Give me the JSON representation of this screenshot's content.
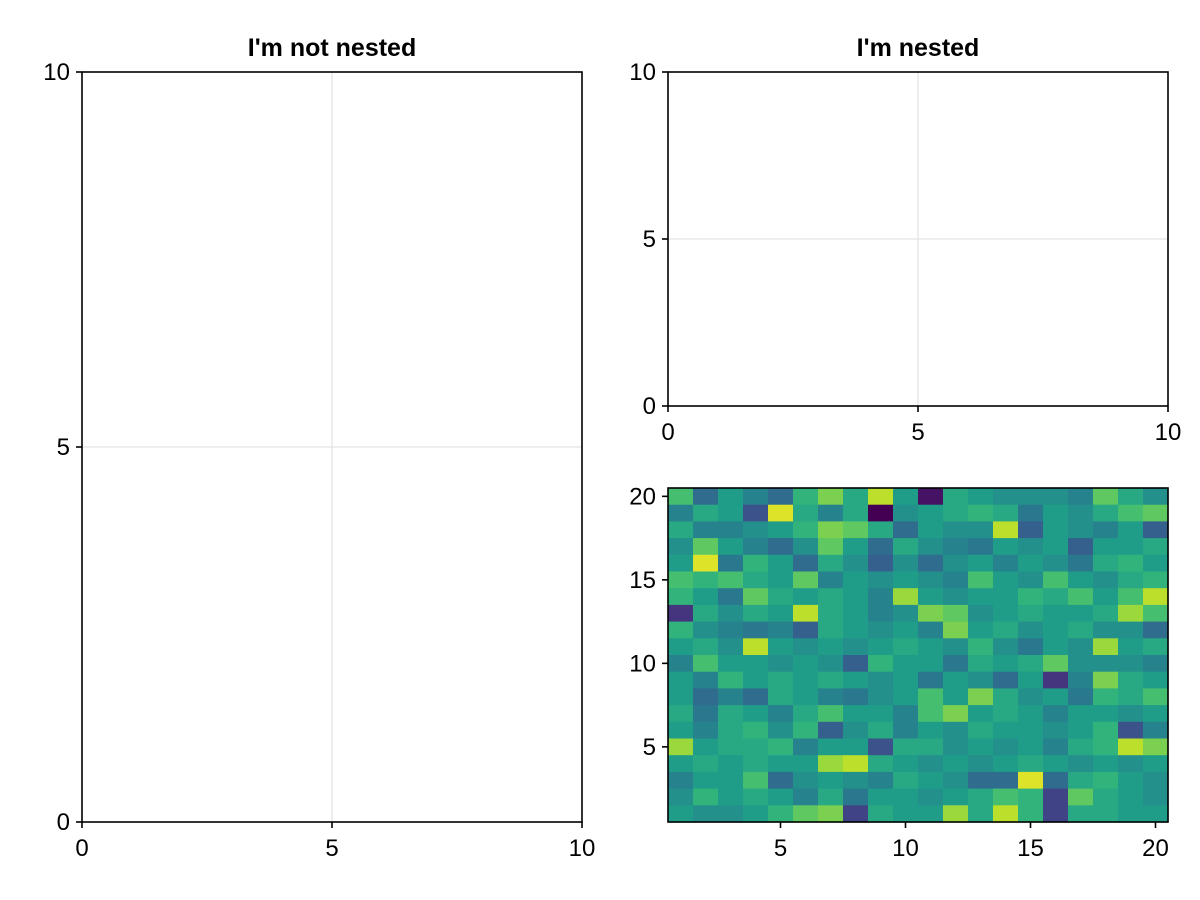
{
  "chart_data": [
    {
      "type": "line",
      "title": "I'm not nested",
      "xlim": [
        0,
        10
      ],
      "ylim": [
        0,
        10
      ],
      "xticks": [
        "0",
        "5",
        "10"
      ],
      "yticks": [
        "0",
        "5",
        "10"
      ],
      "grid": true,
      "series": []
    },
    {
      "type": "line",
      "title": "I'm nested",
      "xlim": [
        0,
        10
      ],
      "ylim": [
        0,
        10
      ],
      "xticks": [
        "0",
        "5",
        "10"
      ],
      "yticks": [
        "0",
        "5",
        "10"
      ],
      "grid": true,
      "series": []
    },
    {
      "type": "heatmap",
      "title": "",
      "colormap": "viridis",
      "xlim": [
        0.5,
        20.5
      ],
      "ylim": [
        0.5,
        20.5
      ],
      "xticks": [
        "5",
        "10",
        "15",
        "20"
      ],
      "yticks": [
        "5",
        "10",
        "15",
        "20"
      ],
      "grid": false,
      "rows_top_to_bottom": [
        [
          0.7,
          0.35,
          0.55,
          0.45,
          0.35,
          0.65,
          0.8,
          0.6,
          0.9,
          0.55,
          0.05,
          0.6,
          0.55,
          0.5,
          0.5,
          0.5,
          0.45,
          0.75,
          0.6,
          0.5
        ],
        [
          0.45,
          0.6,
          0.55,
          0.25,
          0.95,
          0.6,
          0.45,
          0.6,
          0.0,
          0.5,
          0.55,
          0.6,
          0.65,
          0.6,
          0.4,
          0.55,
          0.5,
          0.6,
          0.7,
          0.75
        ],
        [
          0.6,
          0.45,
          0.45,
          0.5,
          0.55,
          0.65,
          0.8,
          0.75,
          0.6,
          0.35,
          0.55,
          0.5,
          0.5,
          0.9,
          0.3,
          0.55,
          0.5,
          0.45,
          0.55,
          0.3
        ],
        [
          0.5,
          0.75,
          0.55,
          0.45,
          0.35,
          0.5,
          0.75,
          0.55,
          0.35,
          0.6,
          0.5,
          0.45,
          0.4,
          0.55,
          0.5,
          0.55,
          0.3,
          0.55,
          0.55,
          0.6
        ],
        [
          0.55,
          0.95,
          0.4,
          0.65,
          0.55,
          0.35,
          0.6,
          0.5,
          0.3,
          0.5,
          0.35,
          0.5,
          0.55,
          0.45,
          0.55,
          0.5,
          0.4,
          0.6,
          0.65,
          0.55
        ],
        [
          0.7,
          0.65,
          0.7,
          0.6,
          0.55,
          0.75,
          0.45,
          0.55,
          0.5,
          0.55,
          0.5,
          0.45,
          0.7,
          0.55,
          0.5,
          0.7,
          0.55,
          0.5,
          0.6,
          0.65
        ],
        [
          0.65,
          0.55,
          0.4,
          0.75,
          0.6,
          0.55,
          0.6,
          0.55,
          0.45,
          0.85,
          0.55,
          0.5,
          0.55,
          0.55,
          0.65,
          0.6,
          0.7,
          0.55,
          0.7,
          0.9
        ],
        [
          0.15,
          0.6,
          0.5,
          0.6,
          0.55,
          0.9,
          0.6,
          0.55,
          0.45,
          0.5,
          0.8,
          0.75,
          0.5,
          0.55,
          0.6,
          0.55,
          0.55,
          0.6,
          0.85,
          0.7
        ],
        [
          0.65,
          0.5,
          0.45,
          0.4,
          0.45,
          0.3,
          0.6,
          0.55,
          0.5,
          0.55,
          0.45,
          0.8,
          0.55,
          0.6,
          0.5,
          0.55,
          0.6,
          0.5,
          0.5,
          0.35
        ],
        [
          0.55,
          0.6,
          0.5,
          0.9,
          0.55,
          0.5,
          0.55,
          0.5,
          0.55,
          0.6,
          0.55,
          0.5,
          0.65,
          0.5,
          0.4,
          0.55,
          0.5,
          0.85,
          0.55,
          0.6
        ],
        [
          0.45,
          0.7,
          0.55,
          0.55,
          0.5,
          0.55,
          0.5,
          0.3,
          0.65,
          0.55,
          0.55,
          0.4,
          0.6,
          0.55,
          0.6,
          0.75,
          0.5,
          0.5,
          0.5,
          0.45
        ],
        [
          0.55,
          0.45,
          0.65,
          0.55,
          0.6,
          0.55,
          0.6,
          0.55,
          0.5,
          0.55,
          0.4,
          0.55,
          0.5,
          0.35,
          0.55,
          0.15,
          0.45,
          0.8,
          0.6,
          0.55
        ],
        [
          0.55,
          0.35,
          0.45,
          0.35,
          0.6,
          0.55,
          0.45,
          0.4,
          0.5,
          0.55,
          0.7,
          0.55,
          0.8,
          0.6,
          0.5,
          0.55,
          0.4,
          0.65,
          0.6,
          0.7
        ],
        [
          0.6,
          0.4,
          0.6,
          0.55,
          0.45,
          0.6,
          0.7,
          0.55,
          0.55,
          0.45,
          0.7,
          0.8,
          0.55,
          0.6,
          0.55,
          0.45,
          0.55,
          0.55,
          0.5,
          0.55
        ],
        [
          0.55,
          0.45,
          0.6,
          0.65,
          0.5,
          0.65,
          0.3,
          0.5,
          0.6,
          0.45,
          0.55,
          0.5,
          0.6,
          0.55,
          0.55,
          0.5,
          0.55,
          0.65,
          0.25,
          0.45
        ],
        [
          0.85,
          0.55,
          0.6,
          0.6,
          0.65,
          0.45,
          0.55,
          0.55,
          0.25,
          0.6,
          0.6,
          0.5,
          0.55,
          0.5,
          0.55,
          0.45,
          0.6,
          0.65,
          0.9,
          0.8
        ],
        [
          0.55,
          0.6,
          0.55,
          0.6,
          0.55,
          0.55,
          0.85,
          0.9,
          0.6,
          0.55,
          0.5,
          0.55,
          0.5,
          0.55,
          0.6,
          0.55,
          0.5,
          0.55,
          0.5,
          0.55
        ],
        [
          0.45,
          0.55,
          0.55,
          0.7,
          0.35,
          0.5,
          0.55,
          0.5,
          0.45,
          0.6,
          0.55,
          0.5,
          0.35,
          0.35,
          0.95,
          0.35,
          0.6,
          0.65,
          0.55,
          0.5
        ],
        [
          0.5,
          0.65,
          0.55,
          0.6,
          0.55,
          0.45,
          0.6,
          0.4,
          0.55,
          0.55,
          0.5,
          0.55,
          0.6,
          0.7,
          0.65,
          0.2,
          0.75,
          0.6,
          0.55,
          0.5
        ],
        [
          0.55,
          0.5,
          0.5,
          0.55,
          0.65,
          0.75,
          0.8,
          0.2,
          0.6,
          0.55,
          0.55,
          0.85,
          0.6,
          0.9,
          0.65,
          0.2,
          0.6,
          0.6,
          0.55,
          0.55
        ]
      ]
    }
  ]
}
